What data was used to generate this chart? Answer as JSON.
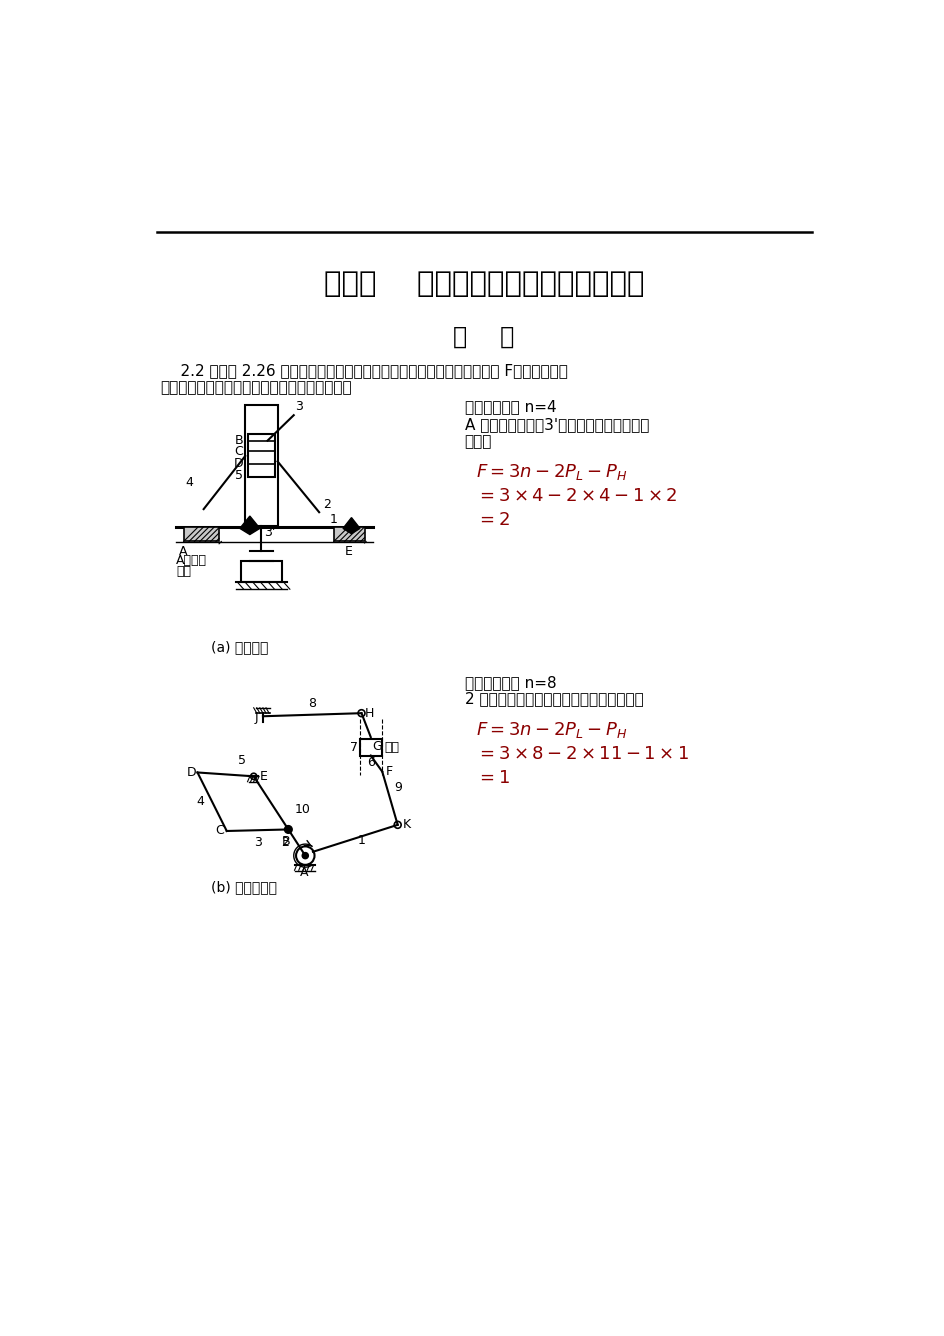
{
  "title": "第二章    平面机构的自由度和速度分析",
  "subtitle": "习    题",
  "body_line1": "    2.2 抄画图 2.26 所示机构简图，补注构件号、运动副符号、计算自由度 F。若有局部自",
  "body_line2": "由度、复合铰链、虚约束，请在图上明确指出。",
  "sol1_line1": "解：活动构件 n=4",
  "sol1_line2": "A 处为复合铰链，3'处为虚约束，无局部自",
  "sol1_line3": "由度。",
  "sol1_f1": "$F = 3n - 2P_L - P_H$",
  "sol1_f2": "$= 3 \\times 4 - 2 \\times 4 - 1 \\times 2$",
  "sol1_f3": "$= 2$",
  "label_a": "(a) 周转轮系",
  "sol2_line1": "解：活动构件 n=8",
  "sol2_line2": "2 为无局部自由度，无复合铰链，无虚约束",
  "sol2_f1": "$F = 3n - 2P_L - P_H$",
  "sol2_f2": "$= 3 \\times 8 - 2 \\times 11 - 1 \\times 1$",
  "sol2_f3": "$= 1$",
  "label_b": "(b) 锯木机机构",
  "fcolor": "#8B0000",
  "black": "#000000",
  "white": "#ffffff"
}
